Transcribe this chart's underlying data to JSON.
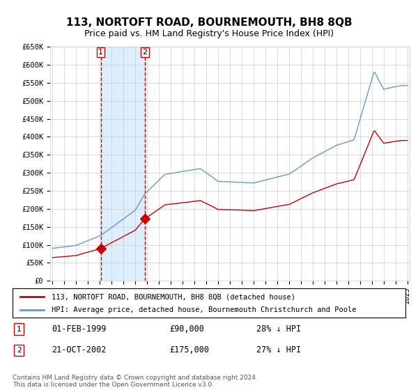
{
  "title": "113, NORTOFT ROAD, BOURNEMOUTH, BH8 8QB",
  "subtitle": "Price paid vs. HM Land Registry's House Price Index (HPI)",
  "legend_line1": "113, NORTOFT ROAD, BOURNEMOUTH, BH8 8QB (detached house)",
  "legend_line2": "HPI: Average price, detached house, Bournemouth Christchurch and Poole",
  "transaction1_label": "1",
  "transaction1_date": "01-FEB-1999",
  "transaction1_price": "£90,000",
  "transaction1_hpi": "28% ↓ HPI",
  "transaction2_label": "2",
  "transaction2_date": "21-OCT-2002",
  "transaction2_price": "£175,000",
  "transaction2_hpi": "27% ↓ HPI",
  "footnote": "Contains HM Land Registry data © Crown copyright and database right 2024.\nThis data is licensed under the Open Government Licence v3.0.",
  "hpi_color": "#6699cc",
  "price_color": "#cc0000",
  "marker_color": "#cc0000",
  "dashed_line_color": "#cc0000",
  "shade_color": "#ddeeff",
  "grid_color": "#cccccc",
  "background_color": "#ffffff",
  "ylim": [
    0,
    650000
  ],
  "yticks": [
    0,
    50000,
    100000,
    150000,
    200000,
    250000,
    300000,
    350000,
    400000,
    450000,
    500000,
    550000,
    600000,
    650000
  ],
  "year_start": 1995,
  "year_end": 2025,
  "transaction1_year": 1999.08,
  "transaction2_year": 2002.8
}
